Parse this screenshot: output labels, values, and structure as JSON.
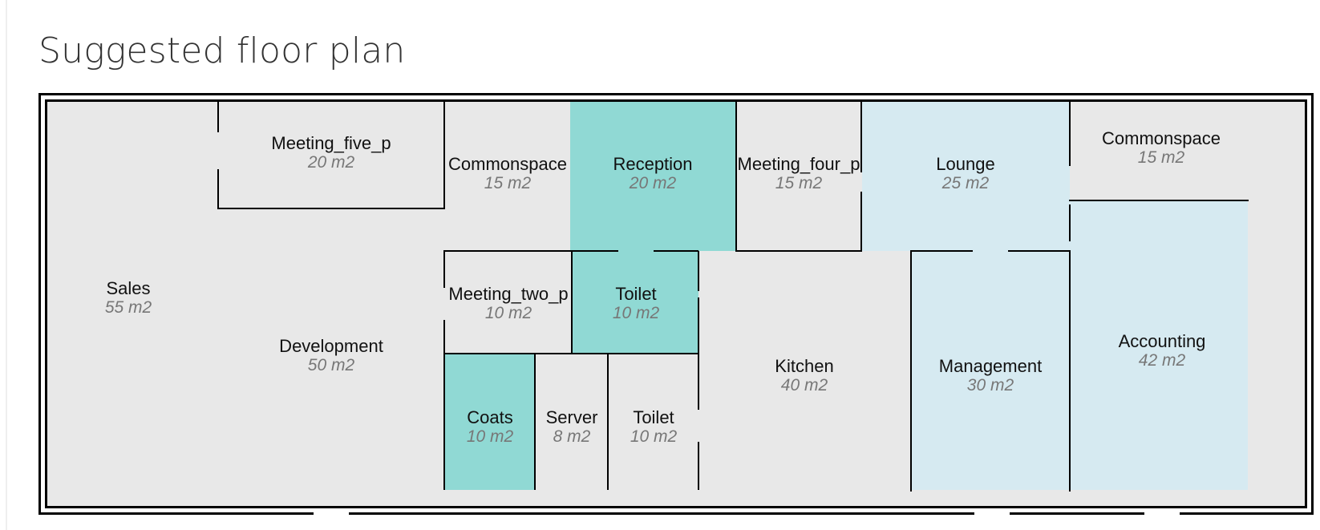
{
  "page": {
    "title": "Suggested floor plan"
  },
  "rooms": [
    {
      "id": "sales",
      "name": "Sales",
      "area": "55 m2",
      "category": "work"
    },
    {
      "id": "meeting_five_p",
      "name": "Meeting_five_p",
      "area": "20 m2",
      "category": "meeting"
    },
    {
      "id": "commonspace_1",
      "name": "Commonspace",
      "area": "15 m2",
      "category": "common"
    },
    {
      "id": "reception",
      "name": "Reception",
      "area": "20 m2",
      "category": "service"
    },
    {
      "id": "meeting_four_p",
      "name": "Meeting_four_p",
      "area": "15 m2",
      "category": "meeting"
    },
    {
      "id": "lounge",
      "name": "Lounge",
      "area": "25 m2",
      "category": "management"
    },
    {
      "id": "commonspace_2",
      "name": "Commonspace",
      "area": "15 m2",
      "category": "common"
    },
    {
      "id": "development",
      "name": "Development",
      "area": "50 m2",
      "category": "work"
    },
    {
      "id": "meeting_two_p",
      "name": "Meeting_two_p",
      "area": "10 m2",
      "category": "meeting"
    },
    {
      "id": "toilet_1",
      "name": "Toilet",
      "area": "10 m2",
      "category": "service"
    },
    {
      "id": "coats",
      "name": "Coats",
      "area": "10 m2",
      "category": "service"
    },
    {
      "id": "server",
      "name": "Server",
      "area": "8 m2",
      "category": "service"
    },
    {
      "id": "toilet_2",
      "name": "Toilet",
      "area": "10 m2",
      "category": "service"
    },
    {
      "id": "kitchen",
      "name": "Kitchen",
      "area": "40 m2",
      "category": "common"
    },
    {
      "id": "management",
      "name": "Management",
      "area": "30 m2",
      "category": "management"
    },
    {
      "id": "accounting",
      "name": "Accounting",
      "area": "42 m2",
      "category": "management"
    }
  ],
  "colors": {
    "service": "#90d9d4",
    "management": "#d6eaf1",
    "default": "#e8e8e8",
    "wall": "#000000"
  }
}
